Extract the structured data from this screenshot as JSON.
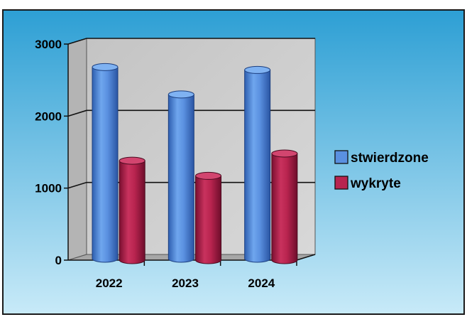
{
  "chart_data": {
    "type": "bar",
    "categories": [
      "2022",
      "2023",
      "2024"
    ],
    "series": [
      {
        "name": "stwierdzone",
        "values": [
          2720,
          2340,
          2680
        ],
        "color": "#4f86d8"
      },
      {
        "name": "wykryte",
        "values": [
          1400,
          1190,
          1500
        ],
        "color": "#b01f4a"
      }
    ],
    "ylim": [
      0,
      3000
    ],
    "yticks": [
      "0",
      "1000",
      "2000",
      "3000"
    ],
    "grid": true,
    "legend": "right",
    "title": "",
    "xlabel": "",
    "ylabel": ""
  },
  "colors": {
    "background_top": "#2d9fd4",
    "background_bottom": "#c8eaf8",
    "plot_wall": "#c8c8c8",
    "plot_floor": "#a8a8a8",
    "border": "#1a1a1a"
  }
}
